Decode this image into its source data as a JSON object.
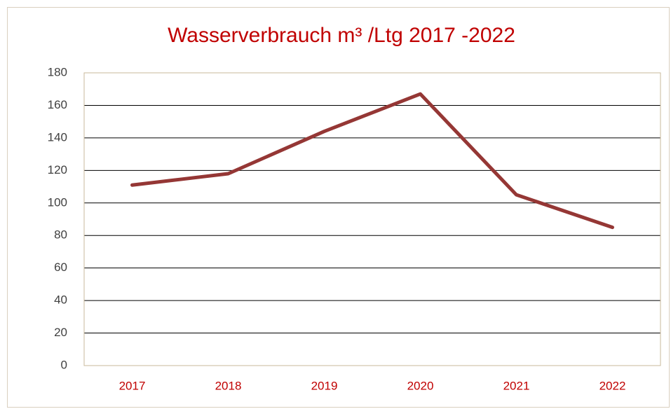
{
  "chart_data": {
    "type": "line",
    "title": "Wasserverbrauch m³ /Ltg 2017 -2022",
    "categories": [
      "2017",
      "2018",
      "2019",
      "2020",
      "2021",
      "2022"
    ],
    "series": [
      {
        "name": "Wasserverbrauch",
        "color": "#953735",
        "values": [
          111,
          118,
          144,
          167,
          105,
          85
        ]
      }
    ],
    "ylim": [
      0,
      180
    ],
    "yticks": [
      0,
      20,
      40,
      60,
      80,
      100,
      120,
      140,
      160,
      180
    ],
    "grid": true
  }
}
